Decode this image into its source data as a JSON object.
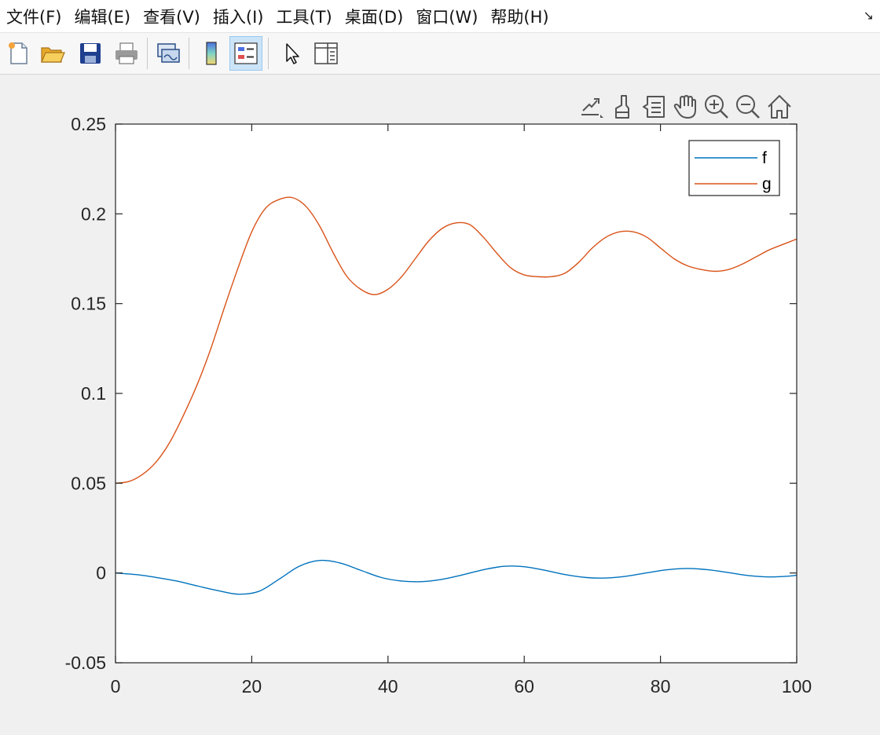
{
  "menu": {
    "items": [
      "文件(F)",
      "编辑(E)",
      "查看(V)",
      "插入(I)",
      "工具(T)",
      "桌面(D)",
      "窗口(W)",
      "帮助(H)"
    ],
    "dock_icon": "dock-arrow-icon"
  },
  "toolbar": {
    "icons": [
      "new-figure-icon",
      "open-file-icon",
      "save-icon",
      "print-icon",
      "link-plot-icon",
      "insert-colorbar-icon",
      "insert-legend-icon",
      "edit-plot-icon",
      "property-inspector-icon"
    ],
    "active": "insert-legend-icon"
  },
  "axes_toolbar": {
    "icons": [
      "export-icon",
      "brush-icon",
      "data-tips-icon",
      "pan-icon",
      "zoom-in-icon",
      "zoom-out-icon",
      "home-icon"
    ]
  },
  "colors": {
    "f": "#0072bd",
    "g": "#d95319",
    "axes": "#262626"
  },
  "chart_data": {
    "type": "line",
    "xlim": [
      0,
      100
    ],
    "ylim": [
      -0.05,
      0.25
    ],
    "xticks": [
      "0",
      "20",
      "40",
      "60",
      "80",
      "100"
    ],
    "xtick_values": [
      0,
      20,
      40,
      60,
      80,
      100
    ],
    "yticks": [
      "-0.05",
      "0",
      "0.05",
      "0.1",
      "0.15",
      "0.2",
      "0.25"
    ],
    "ytick_values": [
      -0.05,
      0,
      0.05,
      0.1,
      0.15,
      0.2,
      0.25
    ],
    "grid": false,
    "legend_position": "top-right",
    "series": [
      {
        "name": "f",
        "x": [
          0,
          3,
          6,
          9,
          12,
          15,
          18,
          21,
          24,
          27,
          30,
          33,
          36,
          39,
          42,
          45,
          48,
          51,
          54,
          57,
          60,
          63,
          66,
          69,
          72,
          75,
          78,
          81,
          84,
          87,
          90,
          93,
          96,
          99,
          100
        ],
        "y": [
          0,
          -0.0009,
          -0.0025,
          -0.0045,
          -0.0072,
          -0.0098,
          -0.0118,
          -0.0103,
          -0.0035,
          0.0038,
          0.007,
          0.0055,
          0.0015,
          -0.0025,
          -0.0045,
          -0.0048,
          -0.0035,
          -0.001,
          0.0018,
          0.0037,
          0.0035,
          0.0015,
          -0.0009,
          -0.0025,
          -0.0028,
          -0.0018,
          0.0001,
          0.0018,
          0.0025,
          0.0018,
          0.0002,
          -0.0015,
          -0.0022,
          -0.0017,
          -0.0012
        ]
      },
      {
        "name": "g",
        "x": [
          0,
          2,
          4,
          6,
          8,
          10,
          12,
          14,
          16,
          18,
          20,
          22,
          24,
          26,
          28,
          30,
          32,
          34,
          36,
          38,
          40,
          42,
          44,
          46,
          48,
          50,
          52,
          54,
          56,
          58,
          60,
          62,
          64,
          66,
          68,
          70,
          72,
          74,
          76,
          78,
          80,
          82,
          84,
          86,
          88,
          90,
          92,
          94,
          96,
          98,
          100
        ],
        "y": [
          0.05,
          0.051,
          0.055,
          0.062,
          0.073,
          0.088,
          0.105,
          0.125,
          0.148,
          0.17,
          0.19,
          0.203,
          0.208,
          0.209,
          0.204,
          0.193,
          0.178,
          0.165,
          0.158,
          0.155,
          0.158,
          0.165,
          0.175,
          0.185,
          0.192,
          0.195,
          0.194,
          0.187,
          0.178,
          0.17,
          0.166,
          0.165,
          0.165,
          0.167,
          0.173,
          0.181,
          0.187,
          0.19,
          0.19,
          0.187,
          0.181,
          0.175,
          0.171,
          0.169,
          0.168,
          0.169,
          0.172,
          0.176,
          0.18,
          0.183,
          0.186
        ]
      }
    ]
  }
}
